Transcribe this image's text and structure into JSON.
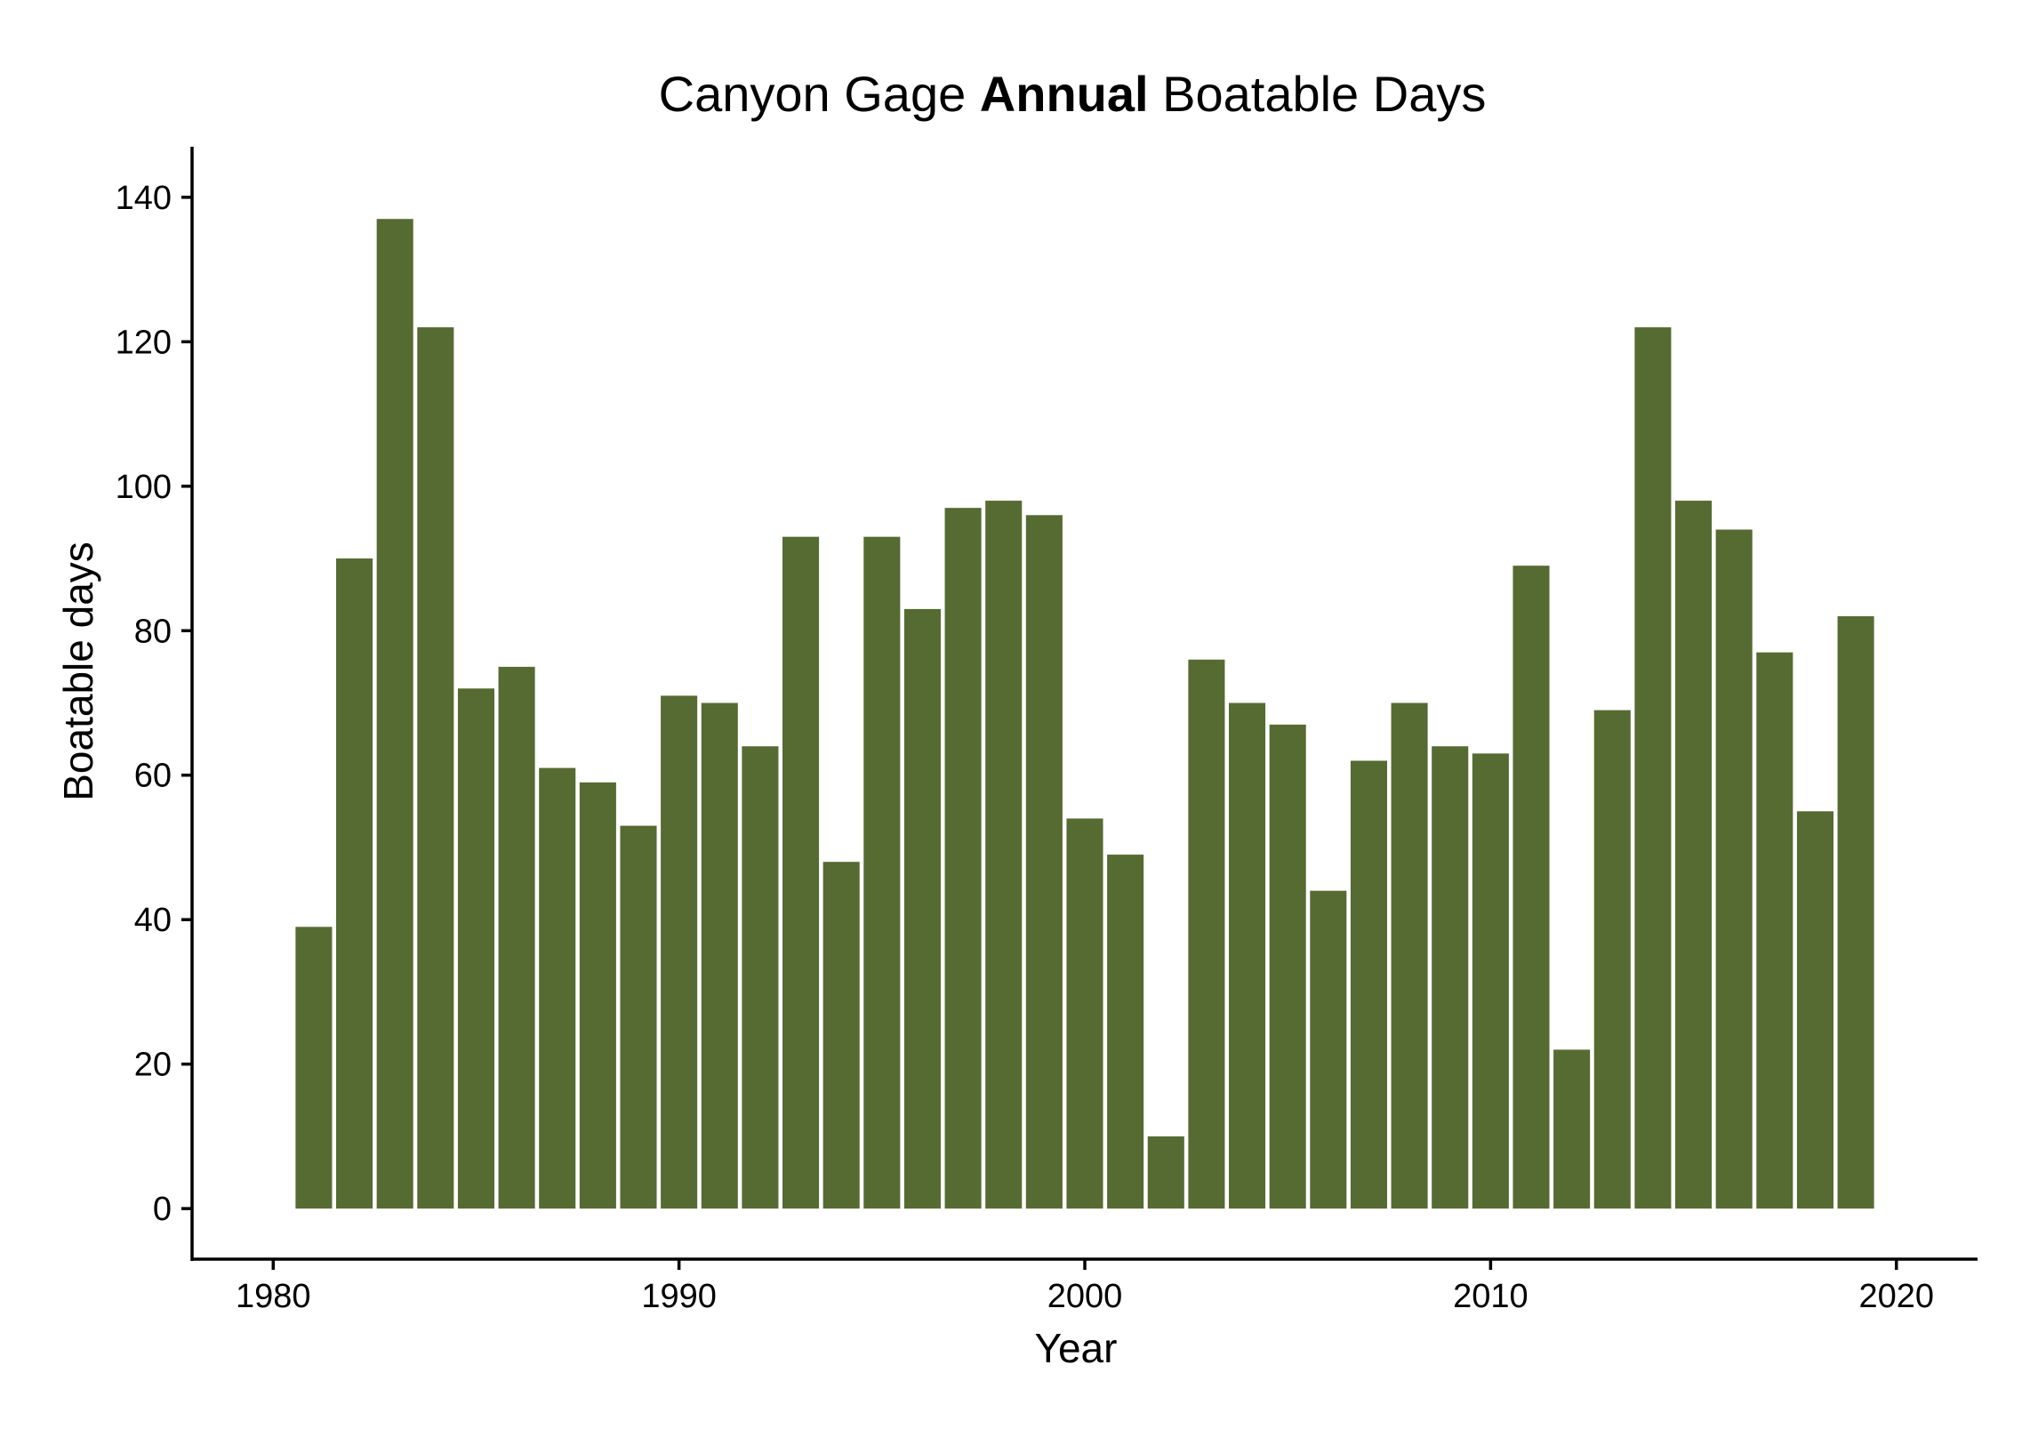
{
  "chart_data": {
    "type": "bar",
    "title": {
      "prefix": "Canyon Gage ",
      "emphasis": "Annual",
      "suffix": " Boatable Days"
    },
    "xlabel": "Year",
    "ylabel": "Boatable days",
    "x": [
      1981,
      1982,
      1983,
      1984,
      1985,
      1986,
      1987,
      1988,
      1989,
      1990,
      1991,
      1992,
      1993,
      1994,
      1995,
      1996,
      1997,
      1998,
      1999,
      2000,
      2001,
      2002,
      2003,
      2004,
      2005,
      2006,
      2007,
      2008,
      2009,
      2010,
      2011,
      2012,
      2013,
      2014,
      2015,
      2016,
      2017,
      2018,
      2019
    ],
    "values": [
      39,
      90,
      137,
      122,
      72,
      75,
      61,
      59,
      53,
      71,
      70,
      64,
      93,
      48,
      93,
      83,
      97,
      98,
      96,
      54,
      49,
      10,
      76,
      70,
      67,
      44,
      62,
      70,
      64,
      63,
      89,
      22,
      69,
      122,
      98,
      94,
      77,
      55,
      82
    ],
    "xticks": [
      "1980",
      "1990",
      "2000",
      "2010",
      "2020"
    ],
    "yticks": [
      "0",
      "20",
      "40",
      "60",
      "80",
      "100",
      "120",
      "140"
    ],
    "xlim": [
      1978,
      2022
    ],
    "ylim": [
      -7,
      147
    ],
    "bar_color": "#566b32",
    "grid": false,
    "legend": "none"
  }
}
